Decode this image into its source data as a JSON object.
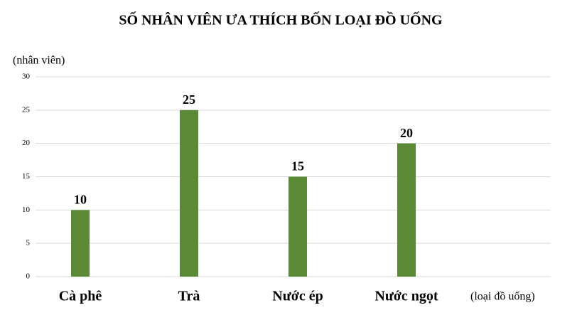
{
  "chart_data": {
    "type": "bar",
    "title": "SỐ NHÂN VIÊN ƯA THÍCH BỐN LOẠI ĐỒ UỐNG",
    "y_label": "(nhân viên)",
    "x_label": "(loại đồ uống)",
    "categories": [
      "Cà phê",
      "Trà",
      "Nước ép",
      "Nước ngọt"
    ],
    "values": [
      10,
      25,
      15,
      20
    ],
    "color": "#5a8a35",
    "ylim": [
      0,
      30
    ],
    "yticks": [
      0,
      5,
      10,
      15,
      20,
      25,
      30
    ],
    "grid": true
  }
}
